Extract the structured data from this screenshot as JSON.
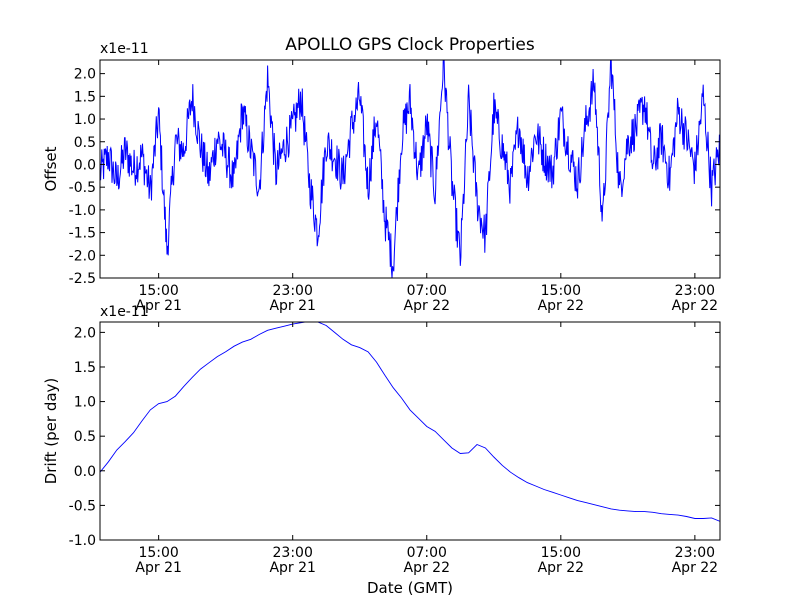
{
  "figure": {
    "title": "APOLLO GPS Clock Properties",
    "line_color": "#0000ff"
  },
  "chart_data": [
    {
      "type": "line",
      "ylabel": "Offset",
      "xlabel": "",
      "multiplier": "x1e-11",
      "ylim": [
        -2.5,
        2.3
      ],
      "yticks": [
        -2.5,
        -2.0,
        -1.5,
        -1.0,
        -0.5,
        0.0,
        0.5,
        1.0,
        1.5,
        2.0
      ],
      "ytick_labels": [
        "-2.5",
        "-2.0",
        "-1.5",
        "-1.0",
        "-0.5",
        "0.0",
        "0.5",
        "1.0",
        "1.5",
        "2.0"
      ],
      "xlim": [
        "2014-04-21 11:30",
        "2014-04-23 00:30"
      ],
      "xticks": [
        "2014-04-21 15:00",
        "2014-04-21 23:00",
        "2014-04-22 07:00",
        "2014-04-22 15:00",
        "2014-04-22 23:00"
      ],
      "xtick_times": [
        "15:00",
        "23:00",
        "07:00",
        "15:00",
        "23:00"
      ],
      "xtick_dates": [
        "Apr 21",
        "Apr 21",
        "Apr 22",
        "Apr 22",
        "Apr 22"
      ],
      "grid": false,
      "series": [
        {
          "x_hours": [
            0,
            0.5,
            1,
            1.5,
            2,
            2.5,
            3,
            3.5,
            4,
            4.5,
            5,
            5.5,
            6,
            6.5,
            7,
            7.5,
            8,
            8.5,
            9,
            9.5,
            10,
            10.5,
            11,
            11.5,
            12,
            12.5,
            13,
            13.5,
            14,
            14.5,
            15,
            15.5,
            16,
            16.5,
            17,
            17.5,
            18,
            18.5,
            19,
            19.5,
            20,
            20.5,
            21,
            21.5,
            22,
            22.5,
            23,
            23.5,
            24,
            24.5,
            25,
            25.5,
            26,
            26.5,
            27,
            27.5,
            28,
            28.5,
            29,
            29.5,
            30,
            30.5,
            31,
            31.5,
            32,
            32.5,
            33,
            33.5,
            34,
            34.5,
            35,
            35.5,
            36,
            36.5,
            37
          ],
          "y": [
            -0.2,
            0.2,
            -0.4,
            0.3,
            -0.1,
            0.2,
            -0.6,
            1.1,
            -1.9,
            0.5,
            0.3,
            1.5,
            0.4,
            -0.3,
            0.6,
            0.2,
            -0.4,
            1.2,
            0.3,
            -0.5,
            1.9,
            -0.2,
            0.4,
            0.8,
            1.5,
            -0.4,
            -1.5,
            0.5,
            0.2,
            -0.3,
            0.8,
            1.5,
            -0.5,
            1.1,
            -1.2,
            -2.2,
            0.6,
            1.4,
            -0.3,
            0.9,
            -0.6,
            2.3,
            -0.4,
            -2.1,
            1.4,
            -0.8,
            -1.6,
            1.2,
            0.4,
            -0.5,
            0.9,
            -0.3,
            0.7,
            0.2,
            -0.2,
            1.1,
            0.3,
            -0.4,
            0.9,
            1.8,
            -1.3,
            2.3,
            -0.6,
            0.5,
            0.8,
            1.4,
            -0.1,
            0.6,
            -0.3,
            1.2,
            0.6,
            -0.1,
            1.5,
            -0.5,
            0.4
          ]
        }
      ]
    },
    {
      "type": "line",
      "ylabel": "Drift (per day)",
      "xlabel": "Date (GMT)",
      "multiplier": "x1e-11",
      "ylim": [
        -1.0,
        2.15
      ],
      "yticks": [
        -1.0,
        -0.5,
        0.0,
        0.5,
        1.0,
        1.5,
        2.0
      ],
      "ytick_labels": [
        "-1.0",
        "-0.5",
        "0.0",
        "0.5",
        "1.0",
        "1.5",
        "2.0"
      ],
      "xlim": [
        "2014-04-21 11:30",
        "2014-04-23 00:30"
      ],
      "xticks": [
        "2014-04-21 15:00",
        "2014-04-21 23:00",
        "2014-04-22 07:00",
        "2014-04-22 15:00",
        "2014-04-22 23:00"
      ],
      "xtick_times": [
        "15:00",
        "23:00",
        "07:00",
        "15:00",
        "23:00"
      ],
      "xtick_dates": [
        "Apr 21",
        "Apr 21",
        "Apr 22",
        "Apr 22",
        "Apr 22"
      ],
      "grid": false,
      "series": [
        {
          "x_hours": [
            0,
            0.5,
            1,
            1.5,
            2,
            2.5,
            3,
            3.5,
            4,
            4.5,
            5,
            5.5,
            6,
            6.5,
            7,
            7.5,
            8,
            8.5,
            9,
            9.5,
            10,
            10.5,
            11,
            11.5,
            12,
            12.5,
            13,
            13.5,
            14,
            14.5,
            15,
            15.5,
            16,
            16.5,
            17,
            17.5,
            18,
            18.5,
            19,
            19.5,
            20,
            20.5,
            21,
            21.5,
            22,
            22.5,
            23,
            23.5,
            24,
            24.5,
            25,
            25.5,
            26,
            26.5,
            27,
            27.5,
            28,
            28.5,
            29,
            29.5,
            30,
            30.5,
            31,
            31.5,
            32,
            32.5,
            33,
            33.5,
            34,
            34.5,
            35,
            35.5,
            36,
            36.5,
            37
          ],
          "y": [
            -0.02,
            0.13,
            0.3,
            0.42,
            0.55,
            0.72,
            0.88,
            0.97,
            1.0,
            1.08,
            1.22,
            1.35,
            1.47,
            1.56,
            1.65,
            1.72,
            1.8,
            1.86,
            1.9,
            1.97,
            2.03,
            2.06,
            2.09,
            2.12,
            2.14,
            2.16,
            2.15,
            2.1,
            2.0,
            1.9,
            1.82,
            1.78,
            1.72,
            1.57,
            1.38,
            1.2,
            1.05,
            0.88,
            0.76,
            0.64,
            0.57,
            0.45,
            0.33,
            0.25,
            0.26,
            0.38,
            0.33,
            0.2,
            0.08,
            -0.02,
            -0.1,
            -0.17,
            -0.22,
            -0.27,
            -0.31,
            -0.35,
            -0.39,
            -0.43,
            -0.46,
            -0.49,
            -0.52,
            -0.55,
            -0.57,
            -0.58,
            -0.59,
            -0.59,
            -0.6,
            -0.62,
            -0.63,
            -0.64,
            -0.66,
            -0.69,
            -0.69,
            -0.68,
            -0.73
          ]
        }
      ]
    }
  ]
}
